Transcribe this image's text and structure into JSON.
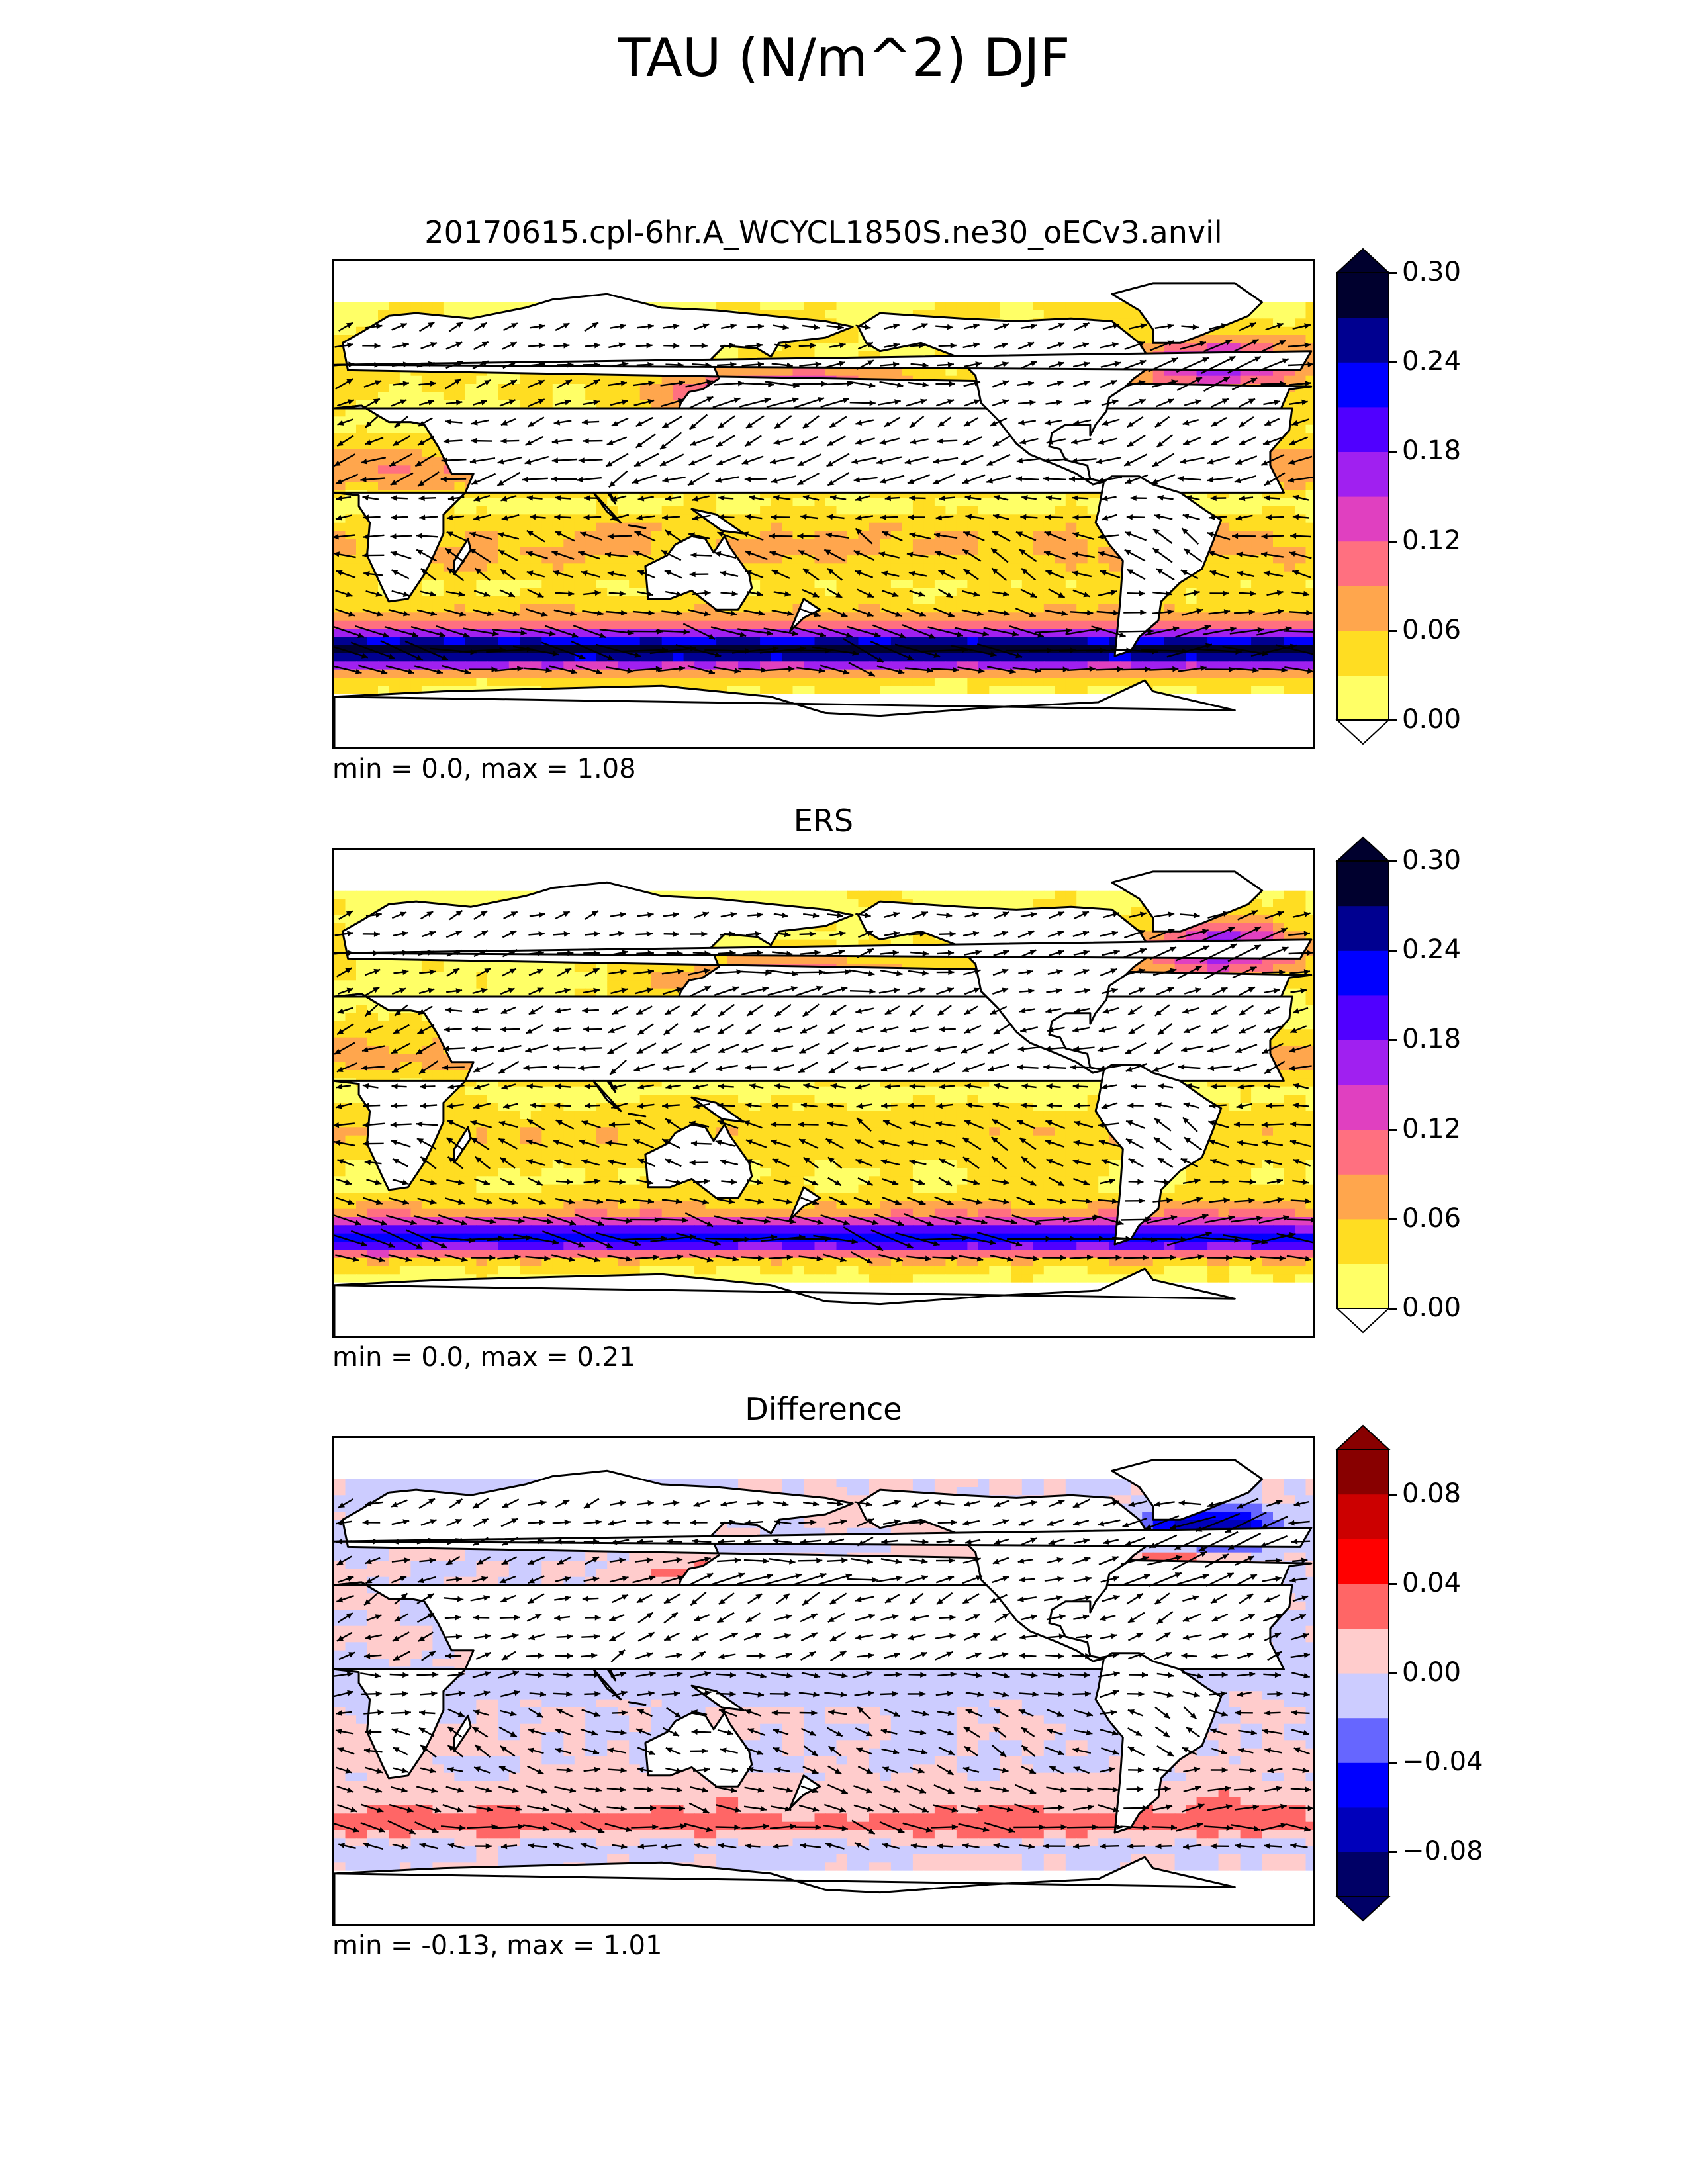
{
  "figure": {
    "title": "TAU (N/m^2) DJF"
  },
  "panels": [
    {
      "title": "20170615.cpl-6hr.A_WCYCL1850S.ne30_oECv3.anvil",
      "stats": "min = 0.0, max = 1.08",
      "field": "model"
    },
    {
      "title": "ERS",
      "stats": "min = 0.0, max = 0.21",
      "field": "obs"
    },
    {
      "title": "Difference",
      "stats": "min = -0.13, max = 1.01",
      "field": "diff"
    }
  ],
  "colorbars": {
    "main": {
      "tick_labels": [
        "0.30",
        "0.24",
        "0.18",
        "0.12",
        "0.06",
        "0.00"
      ],
      "levels": [
        0.0,
        0.03,
        0.06,
        0.09,
        0.12,
        0.15,
        0.18,
        0.21,
        0.24,
        0.27,
        0.3
      ],
      "colors": [
        "#ffff66",
        "#ffdd22",
        "#ffa64d",
        "#ff7080",
        "#e040c0",
        "#a020f0",
        "#5000ff",
        "#0000ff",
        "#000090",
        "#00002e"
      ],
      "extend": "both"
    },
    "diff": {
      "tick_labels": [
        "0.08",
        "0.04",
        "0.00",
        "−0.04",
        "−0.08"
      ],
      "levels": [
        -0.1,
        -0.08,
        -0.06,
        -0.04,
        -0.02,
        0.0,
        0.02,
        0.04,
        0.06,
        0.08,
        0.1
      ],
      "colors": [
        "#000066",
        "#0000bb",
        "#0000ff",
        "#6666ff",
        "#ccccff",
        "#ffcccc",
        "#ff6666",
        "#ff0000",
        "#cc0000",
        "#880000"
      ],
      "extend": "both"
    }
  },
  "chart_data": {
    "type": "heatmap",
    "variable": "TAU",
    "units": "N/m^2",
    "season": "DJF",
    "projection": "PlateCarree, centered 180",
    "overlay": "wind stress vectors",
    "panels": [
      {
        "name": "20170615.cpl-6hr.A_WCYCL1850S.ne30_oECv3.anvil",
        "min": 0.0,
        "max": 1.08,
        "color_range": [
          0.0,
          0.3
        ]
      },
      {
        "name": "ERS",
        "min": 0.0,
        "max": 0.21,
        "color_range": [
          0.0,
          0.3
        ]
      },
      {
        "name": "Difference",
        "min": -0.13,
        "max": 1.01,
        "color_range": [
          -0.1,
          0.1
        ]
      }
    ]
  }
}
